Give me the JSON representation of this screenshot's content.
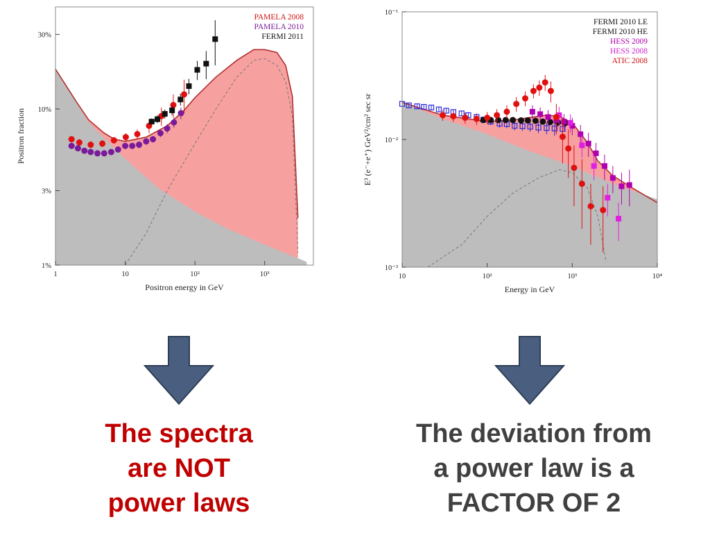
{
  "chart_data": [
    {
      "type": "scatter",
      "scale": "log-log",
      "title": "",
      "xlabel": "Positron energy in GeV",
      "ylabel": "Positron fraction",
      "xlim": [
        1,
        5000
      ],
      "ylim": [
        0.01,
        0.45
      ],
      "xticks": [
        {
          "value": 1,
          "label": "1"
        },
        {
          "value": 10,
          "label": "10"
        },
        {
          "value": 100,
          "label": "10²"
        },
        {
          "value": 1000,
          "label": "10³"
        }
      ],
      "yticks": [
        {
          "value": 0.01,
          "label": "1%"
        },
        {
          "value": 0.03,
          "label": "3%"
        },
        {
          "value": 0.1,
          "label": "10%"
        },
        {
          "value": 0.3,
          "label": "30%"
        }
      ],
      "legend": [
        {
          "label": "PAMELA 2008",
          "color": "#d01010"
        },
        {
          "label": "PAMELA 2010",
          "color": "#7a1a9a"
        },
        {
          "label": "FERMI 2011",
          "color": "#111111"
        }
      ],
      "background_model": {
        "x": [
          1,
          2,
          3,
          5,
          10,
          30,
          100,
          300,
          1000,
          4000
        ],
        "y": [
          0.18,
          0.11,
          0.082,
          0.065,
          0.048,
          0.031,
          0.022,
          0.017,
          0.0135,
          0.0105
        ]
      },
      "total_model": {
        "x": [
          1,
          2,
          3,
          5,
          7,
          10,
          20,
          40,
          70,
          100,
          200,
          400,
          700,
          1000,
          1500,
          2000,
          2500,
          3000
        ],
        "y": [
          0.18,
          0.111,
          0.085,
          0.07,
          0.064,
          0.062,
          0.066,
          0.078,
          0.098,
          0.118,
          0.16,
          0.205,
          0.24,
          0.24,
          0.23,
          0.19,
          0.12,
          0.02
        ]
      },
      "dark_matter_component": {
        "x": [
          10,
          20,
          40,
          100,
          200,
          400,
          700,
          1000,
          1500,
          2000,
          2500,
          3000
        ],
        "y": [
          0.01,
          0.016,
          0.03,
          0.06,
          0.1,
          0.16,
          0.205,
          0.21,
          0.19,
          0.15,
          0.09,
          0.012
        ]
      },
      "series": [
        {
          "name": "PAMELA 2008",
          "color": "#e01010",
          "marker": "circle",
          "points": [
            [
              1.7,
              0.064
            ],
            [
              2.2,
              0.061
            ],
            [
              3.2,
              0.059
            ],
            [
              4.7,
              0.06
            ],
            [
              6.9,
              0.063
            ],
            [
              10.2,
              0.066
            ],
            [
              14.9,
              0.069
            ],
            [
              22,
              0.078
            ],
            [
              33,
              0.09
            ],
            [
              49,
              0.106
            ],
            [
              70,
              0.124
            ]
          ],
          "err": [
            0.003,
            0.003,
            0.003,
            0.003,
            0.003,
            0.004,
            0.005,
            0.008,
            0.012,
            0.018,
            0.03
          ]
        },
        {
          "name": "PAMELA 2010",
          "color": "#7a1a9a",
          "marker": "circle",
          "points": [
            [
              1.7,
              0.058
            ],
            [
              2.1,
              0.056
            ],
            [
              2.6,
              0.054
            ],
            [
              3.2,
              0.053
            ],
            [
              4.0,
              0.052
            ],
            [
              5.0,
              0.052
            ],
            [
              6.3,
              0.053
            ],
            [
              7.9,
              0.055
            ],
            [
              10,
              0.058
            ],
            [
              12.6,
              0.058
            ],
            [
              15.8,
              0.059
            ],
            [
              20,
              0.062
            ],
            [
              25,
              0.064
            ],
            [
              32,
              0.07
            ],
            [
              40,
              0.075
            ],
            [
              50,
              0.082
            ],
            [
              63,
              0.094
            ]
          ],
          "err": [
            0.002,
            0.002,
            0.002,
            0.002,
            0.002,
            0.002,
            0.002,
            0.002,
            0.002,
            0.002,
            0.003,
            0.003,
            0.003,
            0.004,
            0.005,
            0.006,
            0.008
          ]
        },
        {
          "name": "FERMI 2011",
          "color": "#111111",
          "marker": "square",
          "points": [
            [
              24,
              0.083
            ],
            [
              29,
              0.086
            ],
            [
              37,
              0.093
            ],
            [
              47,
              0.098
            ],
            [
              62,
              0.115
            ],
            [
              82,
              0.14
            ],
            [
              108,
              0.178
            ],
            [
              145,
              0.195
            ],
            [
              195,
              0.28
            ]
          ],
          "err": [
            0.004,
            0.005,
            0.006,
            0.007,
            0.01,
            0.016,
            0.025,
            0.04,
            0.09
          ]
        }
      ]
    },
    {
      "type": "scatter",
      "scale": "log-log",
      "title": "",
      "xlabel": "Energy in GeV",
      "ylabel": "E³ (e⁻+e⁺) GeV²/cm² sec sr",
      "xlim": [
        10,
        10000
      ],
      "ylim": [
        0.001,
        0.1
      ],
      "xticks": [
        {
          "value": 10,
          "label": "10"
        },
        {
          "value": 100,
          "label": "10²"
        },
        {
          "value": 1000,
          "label": "10³"
        },
        {
          "value": 10000,
          "label": "10⁴"
        }
      ],
      "yticks": [
        {
          "value": 0.001,
          "label": "10⁻³"
        },
        {
          "value": 0.01,
          "label": "10⁻²"
        },
        {
          "value": 0.1,
          "label": "10⁻¹"
        }
      ],
      "legend": [
        {
          "label": "FERMI 2010 LE",
          "color": "#111111"
        },
        {
          "label": "FERMI 2010 HE",
          "color": "#111111"
        },
        {
          "label": "HESS 2009",
          "color": "#b000b0"
        },
        {
          "label": "HESS 2008",
          "color": "#d020d0"
        },
        {
          "label": "ATIC 2008",
          "color": "#d01010"
        }
      ],
      "background_model": {
        "x": [
          10,
          30,
          100,
          300,
          1000,
          3000,
          10000
        ],
        "y": [
          0.0195,
          0.0145,
          0.011,
          0.0082,
          0.0062,
          0.0045,
          0.0034
        ]
      },
      "total_model": {
        "x": [
          10,
          30,
          100,
          200,
          300,
          500,
          700,
          1000,
          1500,
          2000,
          3000,
          5000,
          10000
        ],
        "y": [
          0.0195,
          0.0155,
          0.0138,
          0.0142,
          0.0148,
          0.0155,
          0.0152,
          0.0135,
          0.0095,
          0.0068,
          0.0052,
          0.0042,
          0.0032
        ]
      },
      "dark_matter_component": {
        "x": [
          20,
          50,
          100,
          200,
          400,
          700,
          1000,
          1500,
          2000,
          2500
        ],
        "y": [
          0.001,
          0.0015,
          0.0025,
          0.0038,
          0.005,
          0.0058,
          0.0055,
          0.0042,
          0.0025,
          0.0011
        ]
      },
      "series": [
        {
          "name": "FERMI 2010 LE",
          "color": "#2a2ad8",
          "marker": "open-square",
          "points": [
            [
              8,
              0.0195
            ],
            [
              10,
              0.019
            ],
            [
              12,
              0.0185
            ],
            [
              15,
              0.0182
            ],
            [
              18,
              0.018
            ],
            [
              22,
              0.0178
            ],
            [
              27,
              0.0172
            ],
            [
              33,
              0.0168
            ],
            [
              40,
              0.0164
            ],
            [
              50,
              0.016
            ],
            [
              60,
              0.0155
            ],
            [
              75,
              0.015
            ],
            [
              90,
              0.0143
            ],
            [
              110,
              0.0138
            ],
            [
              140,
              0.0133
            ],
            [
              170,
              0.0132
            ],
            [
              210,
              0.0128
            ],
            [
              260,
              0.0127
            ],
            [
              320,
              0.0126
            ],
            [
              400,
              0.0124
            ],
            [
              500,
              0.0123
            ],
            [
              620,
              0.0122
            ],
            [
              770,
              0.0121
            ]
          ],
          "err": [
            0.0008,
            0.0008,
            0.0008,
            0.0008,
            0.0008,
            0.0008,
            0.0008,
            0.0008,
            0.0008,
            0.0008,
            0.0008,
            0.0008,
            0.0008,
            0.0008,
            0.0009,
            0.0009,
            0.001,
            0.001,
            0.0011,
            0.0012,
            0.0013,
            0.0015,
            0.0018
          ]
        },
        {
          "name": "FERMI 2010 HE",
          "color": "#111111",
          "marker": "circle",
          "points": [
            [
              90,
              0.0142
            ],
            [
              110,
              0.0142
            ],
            [
              135,
              0.0142
            ],
            [
              165,
              0.0142
            ],
            [
              200,
              0.0142
            ],
            [
              250,
              0.0141
            ],
            [
              300,
              0.0141
            ],
            [
              370,
              0.014
            ],
            [
              450,
              0.0138
            ],
            [
              550,
              0.0137
            ],
            [
              680,
              0.0136
            ],
            [
              830,
              0.0135
            ]
          ],
          "err": [
            0.0006,
            0.0006,
            0.0006,
            0.0006,
            0.0006,
            0.0006,
            0.0006,
            0.0007,
            0.0007,
            0.0008,
            0.0009,
            0.001
          ]
        },
        {
          "name": "HESS 2009",
          "color": "#b000b0",
          "marker": "square",
          "points": [
            [
              340,
              0.0165
            ],
            [
              420,
              0.0158
            ],
            [
              520,
              0.015
            ],
            [
              650,
              0.0142
            ],
            [
              800,
              0.0138
            ],
            [
              1000,
              0.0128
            ],
            [
              1250,
              0.011
            ],
            [
              1550,
              0.0093
            ],
            [
              1900,
              0.0078
            ],
            [
              2400,
              0.0062
            ],
            [
              3000,
              0.005
            ],
            [
              3800,
              0.0043
            ],
            [
              4700,
              0.0044
            ]
          ],
          "err": [
            0.002,
            0.002,
            0.002,
            0.002,
            0.002,
            0.002,
            0.002,
            0.002,
            0.0016,
            0.0014,
            0.0012,
            0.0012,
            0.0014
          ]
        },
        {
          "name": "HESS 2008",
          "color": "#e020e0",
          "marker": "square",
          "points": [
            [
              700,
              0.0155
            ],
            [
              950,
              0.0135
            ],
            [
              1300,
              0.009
            ],
            [
              1800,
              0.0062
            ],
            [
              2600,
              0.0035
            ],
            [
              3500,
              0.0024
            ]
          ],
          "err": [
            0.0025,
            0.0022,
            0.0018,
            0.0014,
            0.001,
            0.0008
          ]
        },
        {
          "name": "ATIC 2008",
          "color": "#e01010",
          "marker": "circle",
          "points": [
            [
              30,
              0.0155
            ],
            [
              40,
              0.0152
            ],
            [
              55,
              0.0148
            ],
            [
              75,
              0.0145
            ],
            [
              100,
              0.0148
            ],
            [
              130,
              0.0155
            ],
            [
              170,
              0.0165
            ],
            [
              220,
              0.019
            ],
            [
              280,
              0.021
            ],
            [
              350,
              0.024
            ],
            [
              410,
              0.0255
            ],
            [
              480,
              0.028
            ],
            [
              560,
              0.024
            ],
            [
              650,
              0.015
            ],
            [
              770,
              0.0105
            ],
            [
              900,
              0.0085
            ],
            [
              1050,
              0.006
            ],
            [
              1300,
              0.0045
            ],
            [
              1650,
              0.003
            ],
            [
              2300,
              0.0028
            ]
          ],
          "err": [
            0.0015,
            0.0015,
            0.0015,
            0.0015,
            0.0016,
            0.0018,
            0.002,
            0.0025,
            0.0028,
            0.003,
            0.0035,
            0.004,
            0.0045,
            0.004,
            0.004,
            0.0035,
            0.003,
            0.0025,
            0.0015,
            0.0015
          ]
        }
      ]
    }
  ],
  "captions": {
    "left": [
      "The spectra",
      "are NOT",
      "power laws"
    ],
    "right": [
      "The deviation from",
      "a power law is a",
      "FACTOR OF 2"
    ]
  },
  "colors": {
    "caption_left": "#c00000",
    "caption_right": "#404040",
    "arrow_fill": "#4a5f80",
    "arrow_stroke": "#2e3d55",
    "background_fill": "#bdbdbd",
    "excess_fill": "#f7a0a0",
    "model_line": "#b03030"
  },
  "icons": {
    "left_arrow": "down-arrow-icon",
    "right_arrow": "down-arrow-icon"
  }
}
